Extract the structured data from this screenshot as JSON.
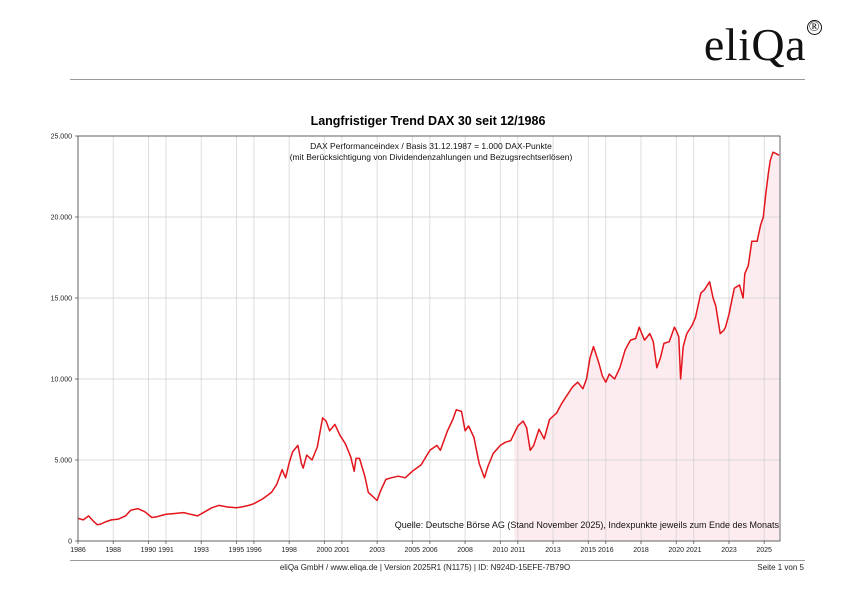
{
  "logo": {
    "text": "eliQa",
    "mark": "®"
  },
  "footer": {
    "left": "eliQa GmbH / www.eliqa.de | Version 2025R1 (N1175) | ID: N924D-15EFE-7B79O",
    "right": "Seite 1 von 5"
  },
  "chart_data": {
    "type": "area",
    "title": "Langfristiger Trend DAX 30 seit 12/1986",
    "subtitle_lines": [
      "DAX Performanceindex / Basis 31.12.1987 = 1.000 DAX-Punkte",
      "(mit Berücksichtigung von Dividendenzahlungen und Bezugsrechtserlösen)"
    ],
    "source_note": "Quelle: Deutsche Börse AG (Stand November 2025), Indexpunkte jeweils zum Ende des Monats",
    "xlabel": "",
    "ylabel": "",
    "xlim": [
      1986,
      2025.9
    ],
    "ylim": [
      0,
      25000
    ],
    "y_ticks": [
      0,
      5000,
      10000,
      15000,
      20000,
      25000
    ],
    "y_tick_labels": [
      "0",
      "5.000",
      "10.000",
      "15.000",
      "20.000",
      "25.000"
    ],
    "x_ticks": [
      1986,
      1988,
      1990,
      1991,
      1993,
      1995,
      1996,
      1998,
      2000,
      2001,
      2003,
      2005,
      2006,
      2008,
      2010,
      2011,
      2013,
      2015,
      2016,
      2018,
      2020,
      2021,
      2023,
      2025
    ],
    "x_tick_labels": [
      "1986",
      "1988",
      "1990",
      "1991",
      "1993",
      "1995",
      "1996",
      "1998",
      "2000",
      "2001",
      "2003",
      "2005",
      "2006",
      "2008",
      "2010",
      "2011",
      "2013",
      "2015",
      "2016",
      "2018",
      "2020",
      "2021",
      "2023",
      "2025"
    ],
    "shaded_region_start": 2010.8,
    "line_color": "#e3141b",
    "shade_color": "#fdecef",
    "series": [
      {
        "name": "DAX Performanceindex",
        "x": [
          1986.0,
          1986.3,
          1986.6,
          1986.9,
          1987.1,
          1987.3,
          1987.6,
          1987.9,
          1988.3,
          1988.7,
          1989.0,
          1989.4,
          1989.8,
          1990.2,
          1990.5,
          1990.8,
          1991.0,
          1991.5,
          1992.0,
          1992.4,
          1992.8,
          1993.2,
          1993.6,
          1994.0,
          1994.5,
          1995.0,
          1995.3,
          1995.7,
          1996.0,
          1996.5,
          1997.0,
          1997.3,
          1997.6,
          1997.8,
          1998.0,
          1998.2,
          1998.5,
          1998.7,
          1998.8,
          1999.0,
          1999.3,
          1999.6,
          1999.9,
          2000.1,
          2000.3,
          2000.6,
          2000.9,
          2001.2,
          2001.5,
          2001.7,
          2001.8,
          2002.0,
          2002.3,
          2002.5,
          2002.7,
          2003.0,
          2003.2,
          2003.5,
          2003.8,
          2004.2,
          2004.6,
          2005.0,
          2005.5,
          2006.0,
          2006.4,
          2006.6,
          2007.0,
          2007.3,
          2007.5,
          2007.8,
          2008.0,
          2008.2,
          2008.5,
          2008.8,
          2009.1,
          2009.3,
          2009.6,
          2010.0,
          2010.3,
          2010.6,
          2011.0,
          2011.3,
          2011.5,
          2011.7,
          2011.9,
          2012.2,
          2012.5,
          2012.8,
          2013.2,
          2013.5,
          2013.8,
          2014.1,
          2014.4,
          2014.7,
          2014.9,
          2015.1,
          2015.3,
          2015.6,
          2015.8,
          2016.0,
          2016.2,
          2016.5,
          2016.8,
          2017.1,
          2017.4,
          2017.7,
          2017.9,
          2018.2,
          2018.5,
          2018.7,
          2018.9,
          2019.1,
          2019.3,
          2019.6,
          2019.9,
          2020.0,
          2020.15,
          2020.25,
          2020.4,
          2020.6,
          2020.9,
          2021.1,
          2021.4,
          2021.6,
          2021.9,
          2022.1,
          2022.25,
          2022.5,
          2022.7,
          2022.8,
          2023.0,
          2023.3,
          2023.6,
          2023.8,
          2023.9,
          2024.1,
          2024.3,
          2024.6,
          2024.8,
          2024.95,
          2025.1,
          2025.25,
          2025.35,
          2025.5,
          2025.7,
          2025.85
        ],
        "values": [
          1400,
          1300,
          1550,
          1200,
          1000,
          1050,
          1200,
          1300,
          1350,
          1550,
          1900,
          2000,
          1800,
          1450,
          1500,
          1600,
          1650,
          1700,
          1750,
          1650,
          1550,
          1800,
          2050,
          2200,
          2100,
          2050,
          2100,
          2200,
          2300,
          2600,
          3000,
          3500,
          4400,
          3900,
          4800,
          5500,
          5900,
          4800,
          4500,
          5300,
          5000,
          5800,
          7600,
          7400,
          6800,
          7200,
          6500,
          6000,
          5200,
          4300,
          5100,
          5100,
          4000,
          3000,
          2800,
          2500,
          3100,
          3800,
          3900,
          4000,
          3900,
          4300,
          4700,
          5600,
          5900,
          5600,
          6800,
          7500,
          8100,
          8000,
          6800,
          7100,
          6400,
          4800,
          3900,
          4600,
          5400,
          5900,
          6100,
          6200,
          7100,
          7400,
          7000,
          5600,
          5900,
          6900,
          6300,
          7500,
          7900,
          8500,
          9000,
          9500,
          9800,
          9400,
          10000,
          11300,
          12000,
          11000,
          10200,
          9800,
          10300,
          10000,
          10700,
          11800,
          12400,
          12500,
          13200,
          12400,
          12800,
          12300,
          10700,
          11300,
          12200,
          12300,
          13200,
          13000,
          12600,
          10000,
          12000,
          12800,
          13300,
          13800,
          15300,
          15500,
          16000,
          15000,
          14500,
          12800,
          13000,
          13200,
          14000,
          15600,
          15800,
          15000,
          16500,
          17000,
          18500,
          18500,
          19500,
          20000,
          21500,
          22800,
          23500,
          24000,
          23900,
          23800
        ]
      }
    ]
  }
}
